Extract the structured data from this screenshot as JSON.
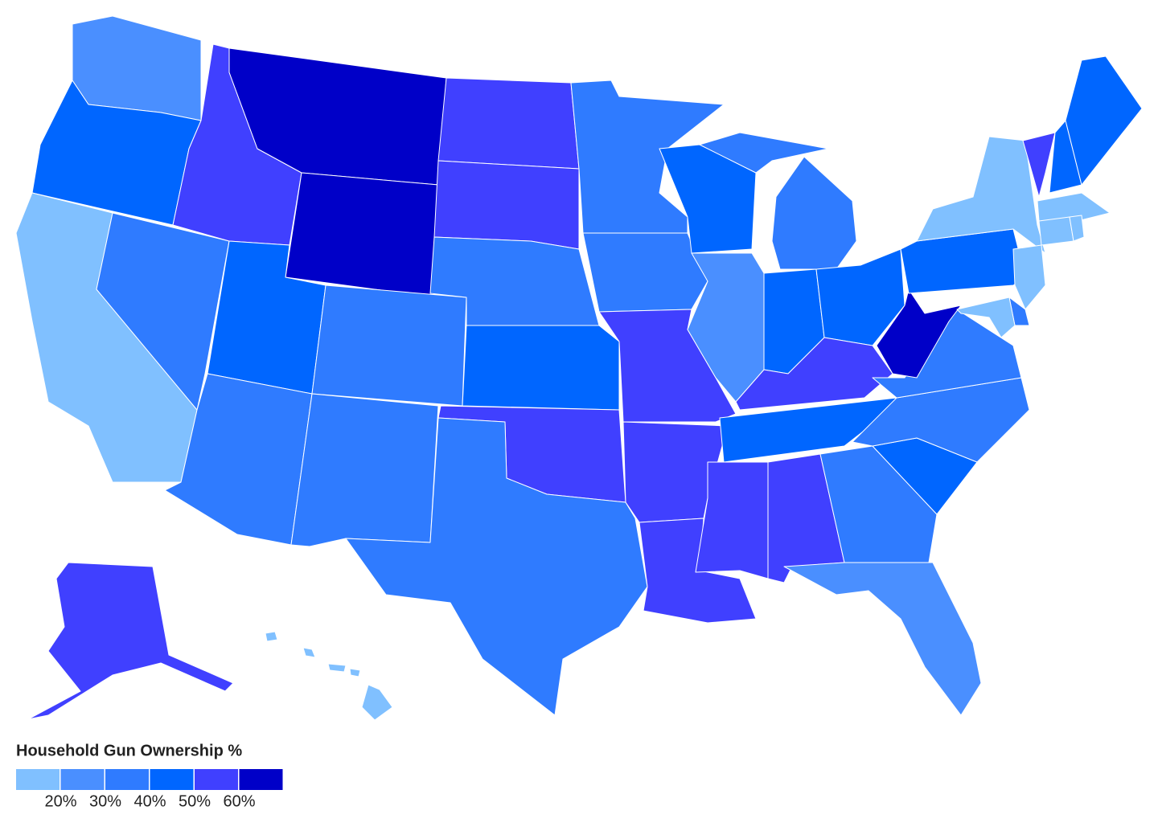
{
  "legend": {
    "title": "Household Gun Ownership %",
    "colors": [
      "#80c0ff",
      "#4a8fff",
      "#2f7bff",
      "#0066ff",
      "#4040ff",
      "#0000c8"
    ],
    "lim": [
      10,
      70
    ],
    "ticks": [
      {
        "value": 20,
        "label": "20%"
      },
      {
        "value": 30,
        "label": "30%"
      },
      {
        "value": 40,
        "label": "40%"
      },
      {
        "value": 50,
        "label": "50%"
      },
      {
        "value": 60,
        "label": "60%"
      }
    ]
  }
}
